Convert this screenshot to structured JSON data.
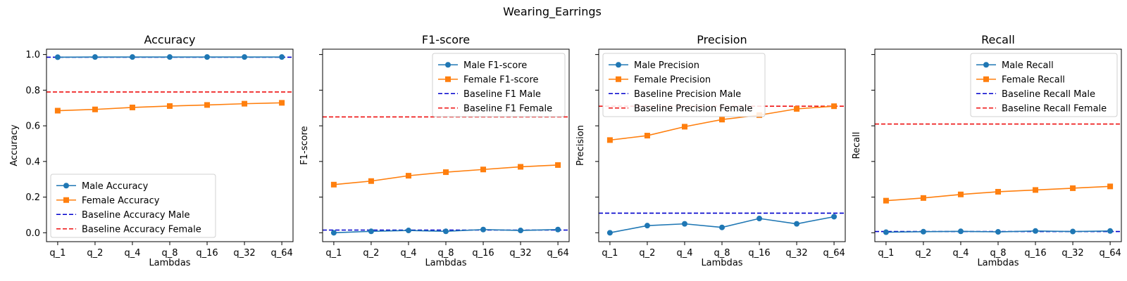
{
  "figure": {
    "title": "Wearing_Earrings"
  },
  "chart_data": [
    {
      "type": "line",
      "title": "Accuracy",
      "xlabel": "Lambdas",
      "ylabel": "Accuracy",
      "categories": [
        "q_1",
        "q_2",
        "q_4",
        "q_8",
        "q_16",
        "q_32",
        "q_64"
      ],
      "ylim": [
        -0.05,
        1.03
      ],
      "yticks": [
        "0.0",
        "0.2",
        "0.4",
        "0.6",
        "0.8",
        "1.0"
      ],
      "legend_position": "lower-left",
      "series": [
        {
          "name": "Male Accuracy",
          "values": [
            0.985,
            0.986,
            0.986,
            0.986,
            0.986,
            0.986,
            0.986
          ],
          "color": "#1f77b4",
          "marker": "circle"
        },
        {
          "name": "Female Accuracy",
          "values": [
            0.685,
            0.692,
            0.703,
            0.711,
            0.717,
            0.724,
            0.729
          ],
          "color": "#ff7f0e",
          "marker": "square"
        }
      ],
      "baselines": [
        {
          "name": "Baseline Accuracy Male",
          "value": 0.985,
          "color": "#0000cc"
        },
        {
          "name": "Baseline Accuracy Female",
          "value": 0.79,
          "color": "#ee1111"
        }
      ]
    },
    {
      "type": "line",
      "title": "F1-score",
      "xlabel": "Lambdas",
      "ylabel": "F1-score",
      "categories": [
        "q_1",
        "q_2",
        "q_4",
        "q_8",
        "q_16",
        "q_32",
        "q_64"
      ],
      "ylim": [
        -0.05,
        1.03
      ],
      "yticks": [],
      "legend_position": "upper-right",
      "series": [
        {
          "name": "Male F1-score",
          "values": [
            0.0,
            0.008,
            0.013,
            0.008,
            0.018,
            0.013,
            0.018
          ],
          "color": "#1f77b4",
          "marker": "circle"
        },
        {
          "name": "Female F1-score",
          "values": [
            0.27,
            0.29,
            0.32,
            0.34,
            0.355,
            0.37,
            0.38
          ],
          "color": "#ff7f0e",
          "marker": "square"
        }
      ],
      "baselines": [
        {
          "name": "Baseline F1 Male",
          "value": 0.015,
          "color": "#0000cc"
        },
        {
          "name": "Baseline F1 Female",
          "value": 0.65,
          "color": "#ee1111"
        }
      ]
    },
    {
      "type": "line",
      "title": "Precision",
      "xlabel": "Lambdas",
      "ylabel": "Precision",
      "categories": [
        "q_1",
        "q_2",
        "q_4",
        "q_8",
        "q_16",
        "q_32",
        "q_64"
      ],
      "ylim": [
        -0.05,
        1.03
      ],
      "yticks": [],
      "legend_position": "upper-left",
      "series": [
        {
          "name": "Male Precision",
          "values": [
            0.0,
            0.04,
            0.05,
            0.03,
            0.08,
            0.05,
            0.09
          ],
          "color": "#1f77b4",
          "marker": "circle"
        },
        {
          "name": "Female Precision",
          "values": [
            0.52,
            0.545,
            0.595,
            0.635,
            0.66,
            0.695,
            0.71
          ],
          "color": "#ff7f0e",
          "marker": "square"
        }
      ],
      "baselines": [
        {
          "name": "Baseline Precision Male",
          "value": 0.11,
          "color": "#0000cc"
        },
        {
          "name": "Baseline Precision Female",
          "value": 0.71,
          "color": "#ee1111"
        }
      ]
    },
    {
      "type": "line",
      "title": "Recall",
      "xlabel": "Lambdas",
      "ylabel": "Recall",
      "categories": [
        "q_1",
        "q_2",
        "q_4",
        "q_8",
        "q_16",
        "q_32",
        "q_64"
      ],
      "ylim": [
        -0.05,
        1.03
      ],
      "yticks": [],
      "legend_position": "upper-right",
      "series": [
        {
          "name": "Male Recall",
          "values": [
            0.003,
            0.006,
            0.008,
            0.005,
            0.01,
            0.007,
            0.01
          ],
          "color": "#1f77b4",
          "marker": "circle"
        },
        {
          "name": "Female Recall",
          "values": [
            0.18,
            0.195,
            0.215,
            0.23,
            0.24,
            0.25,
            0.26
          ],
          "color": "#ff7f0e",
          "marker": "square"
        }
      ],
      "baselines": [
        {
          "name": "Baseline Recall Male",
          "value": 0.007,
          "color": "#0000cc"
        },
        {
          "name": "Baseline Recall Female",
          "value": 0.61,
          "color": "#ee1111"
        }
      ]
    }
  ]
}
